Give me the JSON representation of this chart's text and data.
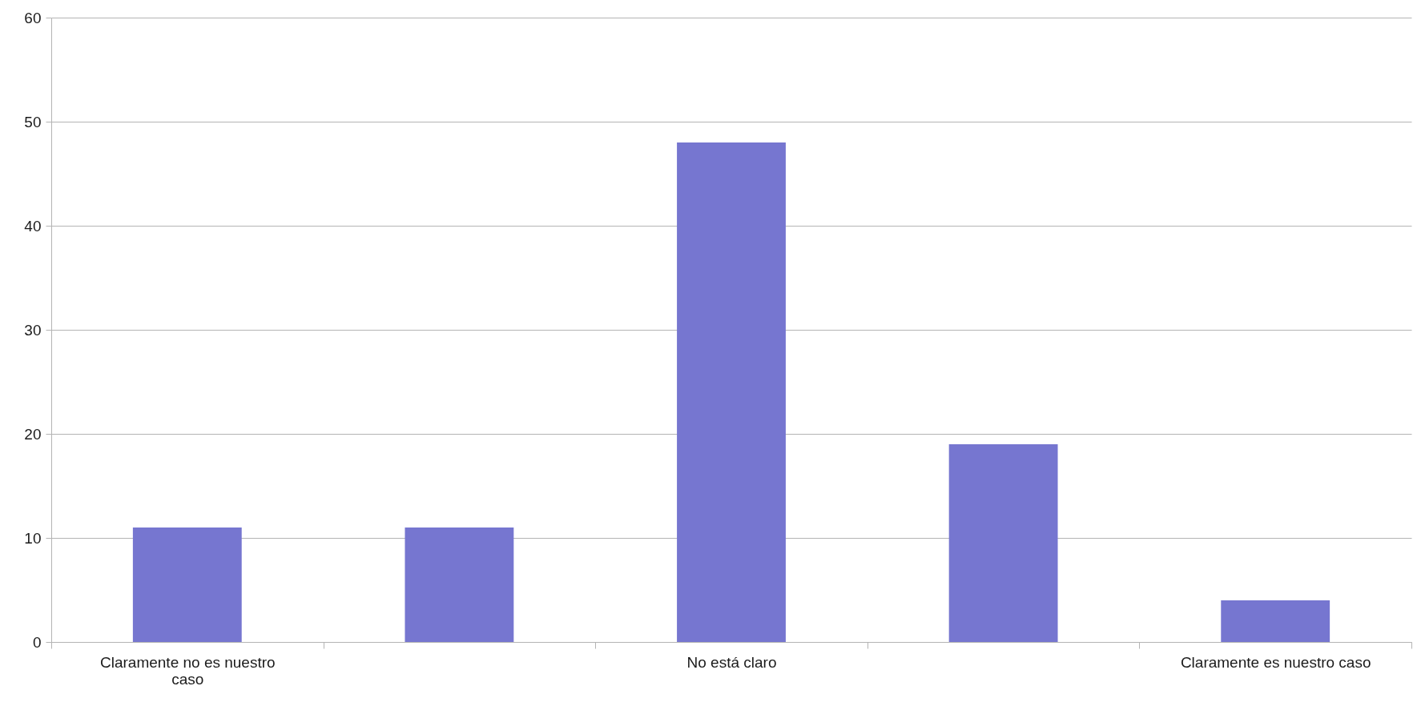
{
  "chart_data": {
    "type": "bar",
    "categories": [
      "Claramente no es nuestro caso",
      null,
      "No está claro",
      null,
      "Claramente es nuestro caso"
    ],
    "values": [
      11,
      11,
      48,
      19,
      4
    ],
    "color": "#7676d0",
    "ylim": [
      0,
      60
    ],
    "yticks": [
      0,
      10,
      20,
      30,
      40,
      50,
      60
    ],
    "grid": "y"
  }
}
